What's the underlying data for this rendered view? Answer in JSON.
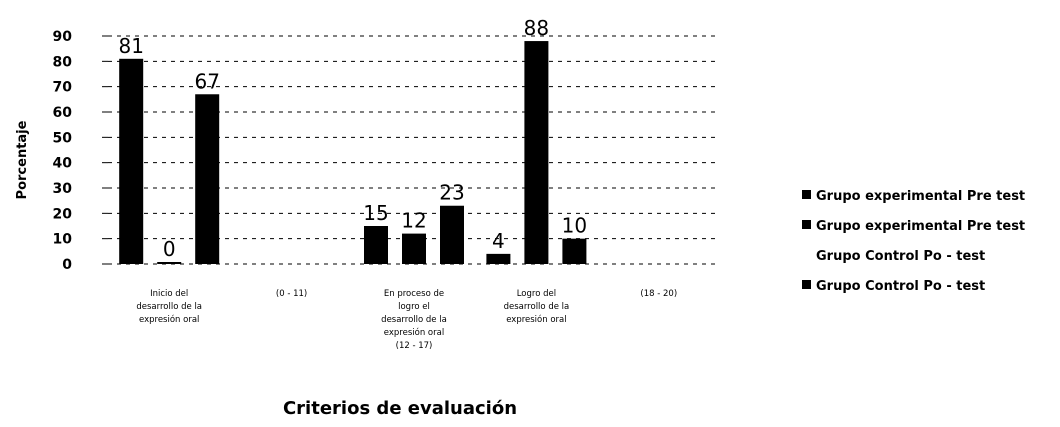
{
  "chart_data": {
    "type": "bar",
    "title": "",
    "xlabel": "Criterios de evaluación",
    "ylabel": "Porcentaje",
    "ylim": [
      0,
      90
    ],
    "yticks": [
      0,
      10,
      20,
      30,
      40,
      50,
      60,
      70,
      80,
      90
    ],
    "grid": true,
    "legend_position": "right",
    "categories": [
      [
        "Inicio del",
        "desarrollo de la",
        "expresión oral"
      ],
      [
        "(0 - 11)"
      ],
      [
        "En proceso de",
        "logro el",
        "desarrollo de la",
        "expresión oral",
        "(12 - 17)"
      ],
      [
        "Logro del",
        "desarrollo de la",
        "expresión oral"
      ],
      [
        "(18 - 20)"
      ]
    ],
    "series": [
      {
        "name": "Grupo experimental Pre test",
        "color": "#000000",
        "values": [
          81,
          null,
          15,
          4,
          null
        ]
      },
      {
        "name": "Grupo experimental Pre test",
        "color": "#000000",
        "values": [
          0,
          null,
          12,
          88,
          null
        ]
      },
      {
        "name": "Grupo Control Po - test",
        "color": "#000000",
        "values": [
          67,
          null,
          23,
          10,
          null
        ]
      },
      {
        "name": "Grupo Control Po - test",
        "color": "#000000",
        "values": [
          null,
          null,
          null,
          null,
          null
        ]
      }
    ],
    "legend_markers": [
      true,
      true,
      false,
      true
    ]
  }
}
